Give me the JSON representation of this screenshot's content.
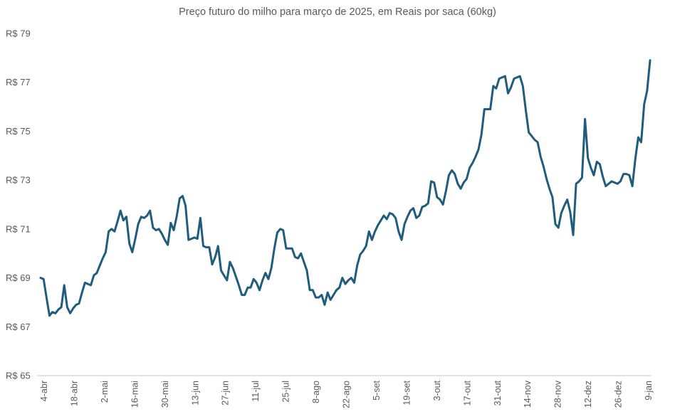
{
  "chart_data": {
    "type": "line",
    "title": "Preço futuro do milho para março de 2025, em Reais por saca (60kg)",
    "xlabel": "",
    "ylabel": "",
    "ylim": [
      65,
      79
    ],
    "y_ticks": [
      65,
      67,
      69,
      71,
      73,
      75,
      77,
      79
    ],
    "y_tick_labels": [
      "R$ 65",
      "R$ 67",
      "R$ 69",
      "R$ 71",
      "R$ 73",
      "R$ 75",
      "R$ 77",
      "R$ 79"
    ],
    "x_tick_labels": [
      "4-abr",
      "18-abr",
      "2-mai",
      "16-mai",
      "30-mai",
      "13-jun",
      "27-jun",
      "11-jul",
      "25-jul",
      "8-ago",
      "22-ago",
      "5-set",
      "19-set",
      "3-out",
      "17-out",
      "31-out",
      "14-nov",
      "28-nov",
      "12-dez",
      "26-dez",
      "9-jan"
    ],
    "grid": false,
    "legend": "none",
    "line_color": "#1f5c7d",
    "series": [
      {
        "name": "Preço futuro do milho",
        "values": [
          69.0,
          68.95,
          68.2,
          67.45,
          67.6,
          67.55,
          67.7,
          67.8,
          68.7,
          67.8,
          67.55,
          67.75,
          67.9,
          67.95,
          68.4,
          68.8,
          68.75,
          68.7,
          69.1,
          69.2,
          69.5,
          69.8,
          70.05,
          70.9,
          71.0,
          70.9,
          71.3,
          71.75,
          71.35,
          71.5,
          70.4,
          70.05,
          70.6,
          71.2,
          71.5,
          71.45,
          71.55,
          71.75,
          71.05,
          70.95,
          71.0,
          70.8,
          70.55,
          70.35,
          71.25,
          70.95,
          71.5,
          72.25,
          72.35,
          71.95,
          70.55,
          70.6,
          70.65,
          70.6,
          71.45,
          70.3,
          70.25,
          70.25,
          69.55,
          69.85,
          70.3,
          69.3,
          69.1,
          68.9,
          69.65,
          69.4,
          69.05,
          68.7,
          68.3,
          68.3,
          68.6,
          68.6,
          68.95,
          68.8,
          68.5,
          68.9,
          69.2,
          68.95,
          69.4,
          70.2,
          70.85,
          71.0,
          70.95,
          70.2,
          70.2,
          70.2,
          69.85,
          69.8,
          70.0,
          69.65,
          69.3,
          68.5,
          68.5,
          68.2,
          68.2,
          68.3,
          67.9,
          68.4,
          68.1,
          68.3,
          68.5,
          68.6,
          69.0,
          68.75,
          68.9,
          69.0,
          68.8,
          69.5,
          69.95,
          70.1,
          70.3,
          70.9,
          70.55,
          70.9,
          71.15,
          71.35,
          71.55,
          71.4,
          71.65,
          71.6,
          71.45,
          70.9,
          70.55,
          71.2,
          71.5,
          71.75,
          71.85,
          71.45,
          71.55,
          71.9,
          71.95,
          72.05,
          72.95,
          72.9,
          72.3,
          72.2,
          72.0,
          72.55,
          73.2,
          73.4,
          73.25,
          72.85,
          72.65,
          72.9,
          73.05,
          73.5,
          73.7,
          73.95,
          74.25,
          74.85,
          75.9,
          75.9,
          75.9,
          76.85,
          76.75,
          77.15,
          77.2,
          77.25,
          76.55,
          76.8,
          77.15,
          77.2,
          77.25,
          76.85,
          75.85,
          74.95,
          74.8,
          74.65,
          74.55,
          73.95,
          73.55,
          73.05,
          72.65,
          72.3,
          71.2,
          71.05,
          71.65,
          71.95,
          72.2,
          71.7,
          70.75,
          72.85,
          72.95,
          73.1,
          75.5,
          73.9,
          73.5,
          73.2,
          73.75,
          73.65,
          73.15,
          72.75,
          72.85,
          72.95,
          72.9,
          72.85,
          72.95,
          73.25,
          73.25,
          73.2,
          72.75,
          73.85,
          74.75,
          74.55,
          76.1,
          76.65,
          77.9
        ]
      }
    ]
  }
}
